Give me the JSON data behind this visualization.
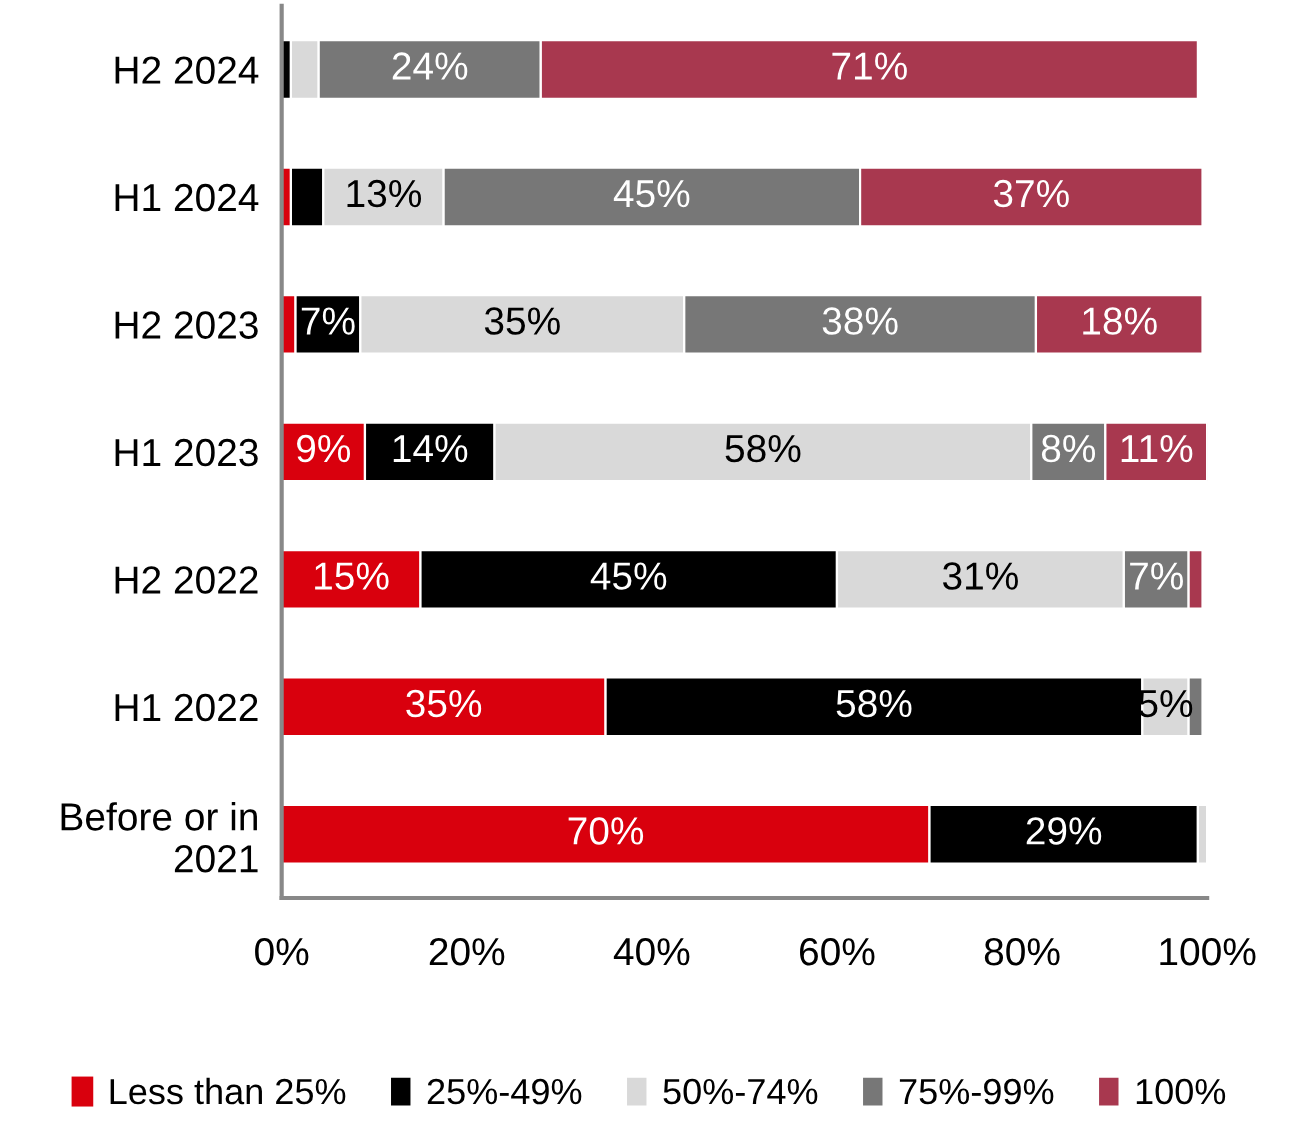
{
  "chart_data": {
    "type": "bar",
    "orientation": "horizontal",
    "stacked": true,
    "categories": [
      "H2 2024",
      "H1 2024",
      "H2 2023",
      "H1 2023",
      "H2 2022",
      "H1 2022",
      "Before or in\n2021"
    ],
    "series": [
      {
        "name": "Less than 25%",
        "color": "#d9000d",
        "values": [
          null,
          1,
          1.5,
          9,
          15,
          35,
          70
        ],
        "value_labels": [
          null,
          null,
          null,
          "9%",
          "15%",
          "35%",
          "70%"
        ]
      },
      {
        "name": "25%-49%",
        "color": "#000000",
        "values": [
          1,
          3.5,
          7,
          14,
          45,
          58,
          29
        ],
        "value_labels": [
          null,
          null,
          "7%",
          "14%",
          "45%",
          "58%",
          "29%"
        ]
      },
      {
        "name": "50%-74%",
        "color": "#d9d9d9",
        "values": [
          3,
          13,
          35,
          58,
          31,
          5,
          1
        ],
        "value_labels": [
          null,
          "13%",
          "35%",
          "58%",
          "31%",
          "5%",
          null
        ]
      },
      {
        "name": "75%-99%",
        "color": "#777777",
        "values": [
          24,
          45,
          38,
          8,
          7,
          1.5,
          null
        ],
        "value_labels": [
          "24%",
          "45%",
          "38%",
          "8%",
          "7%",
          null,
          null
        ]
      },
      {
        "name": "100%",
        "color": "#a8384f",
        "values": [
          71,
          37,
          18,
          11,
          1.5,
          null,
          null
        ],
        "value_labels": [
          "71%",
          "37%",
          "18%",
          "11%",
          null,
          null,
          null
        ]
      }
    ],
    "xlim": [
      0,
      100
    ],
    "xticks": [
      {
        "value": 0,
        "label": "0%"
      },
      {
        "value": 20,
        "label": "20%"
      },
      {
        "value": 40,
        "label": "40%"
      },
      {
        "value": 60,
        "label": "60%"
      },
      {
        "value": 80,
        "label": "80%"
      },
      {
        "value": 100,
        "label": "100%"
      }
    ],
    "grid": false,
    "legend": "bottom"
  }
}
